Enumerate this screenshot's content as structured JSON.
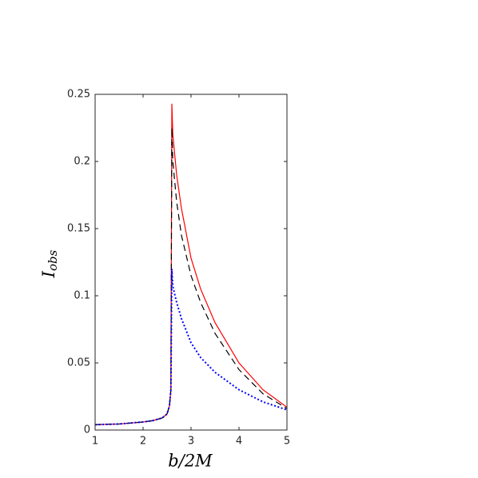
{
  "chart_data": {
    "type": "line",
    "xlabel": "b/2M",
    "ylabel": "I",
    "ylabel_sub": "obs",
    "x": [
      1,
      1.5,
      2,
      2.2,
      2.4,
      2.5,
      2.55,
      2.58,
      2.6,
      2.62,
      2.7,
      2.8,
      3,
      3.2,
      3.5,
      4,
      4.5,
      5
    ],
    "series": [
      {
        "color": "#ff0000",
        "dash": "solid",
        "values": [
          0.004,
          0.0045,
          0.006,
          0.007,
          0.009,
          0.012,
          0.018,
          0.03,
          0.243,
          0.22,
          0.19,
          0.165,
          0.128,
          0.105,
          0.08,
          0.05,
          0.03,
          0.017
        ]
      },
      {
        "color": "#000000",
        "dash": "dashed",
        "values": [
          0.004,
          0.0045,
          0.006,
          0.007,
          0.009,
          0.012,
          0.018,
          0.03,
          0.225,
          0.2,
          0.17,
          0.145,
          0.115,
          0.095,
          0.072,
          0.045,
          0.027,
          0.016
        ]
      },
      {
        "color": "#0000ff",
        "dash": "dotted",
        "values": [
          0.004,
          0.0045,
          0.006,
          0.007,
          0.009,
          0.012,
          0.018,
          0.03,
          0.12,
          0.107,
          0.095,
          0.083,
          0.065,
          0.054,
          0.043,
          0.03,
          0.021,
          0.015
        ]
      }
    ],
    "xlim": [
      1,
      5
    ],
    "xticks": [
      1,
      2,
      3,
      4,
      5
    ],
    "ylim": [
      0,
      0.25
    ],
    "yticks": [
      0,
      0.05,
      0.1,
      0.15,
      0.2,
      0.25
    ]
  }
}
